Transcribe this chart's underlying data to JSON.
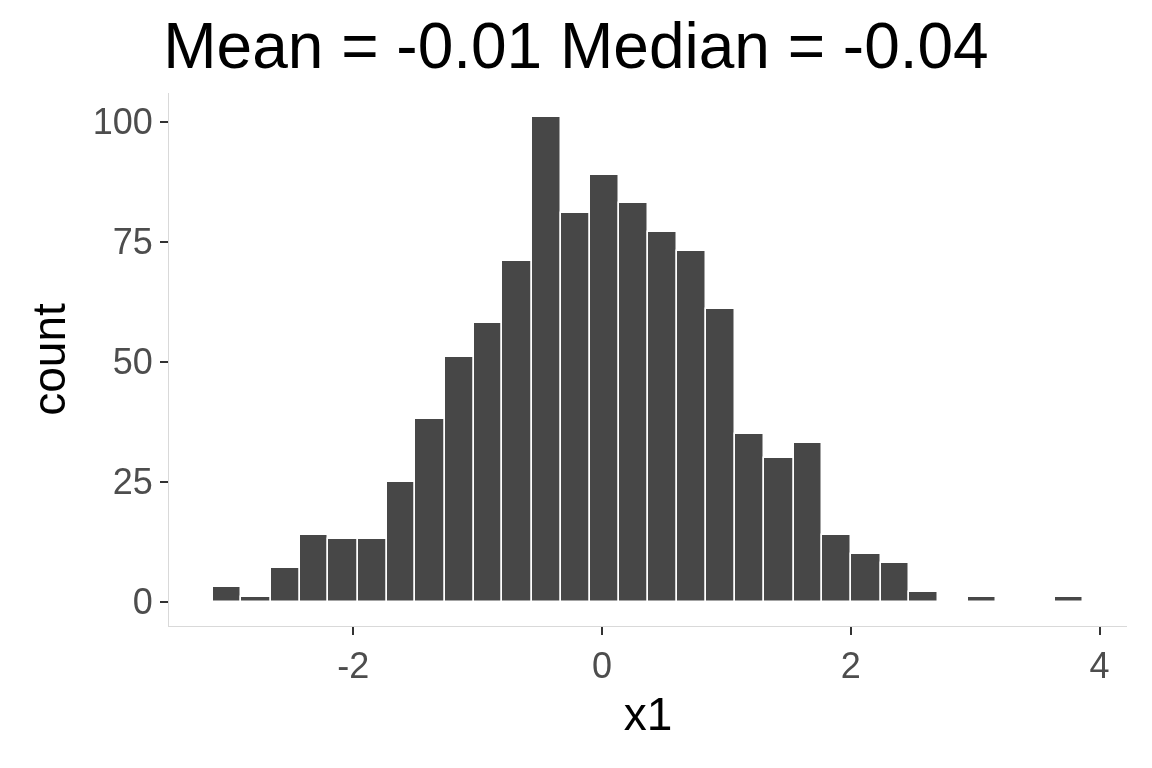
{
  "chart_data": {
    "type": "histogram",
    "title": "Mean = -0.01 Median = -0.04",
    "xlabel": "x1",
    "ylabel": "count",
    "color": "#474747",
    "bins": [
      -3.13,
      -2.9,
      -2.66,
      -2.43,
      -2.2,
      -1.96,
      -1.73,
      -1.5,
      -1.26,
      -1.03,
      -0.8,
      -0.56,
      -0.33,
      -0.1,
      0.14,
      0.37,
      0.6,
      0.84,
      1.07,
      1.3,
      1.54,
      1.77,
      2.0,
      2.24,
      2.47,
      2.7,
      2.94,
      3.17,
      3.64,
      3.87
    ],
    "values": [
      3,
      1,
      7,
      14,
      13,
      13,
      25,
      38,
      51,
      58,
      71,
      101,
      81,
      89,
      83,
      77,
      73,
      61,
      35,
      30,
      33,
      14,
      10,
      8,
      2,
      0,
      1,
      0,
      1
    ],
    "xlim": [
      -3.48,
      4.22
    ],
    "xticks": [
      -2,
      0,
      2,
      4
    ],
    "ylim": [
      -5.05,
      106
    ],
    "yticks": [
      0,
      25,
      50,
      75,
      100
    ],
    "grid": false
  }
}
